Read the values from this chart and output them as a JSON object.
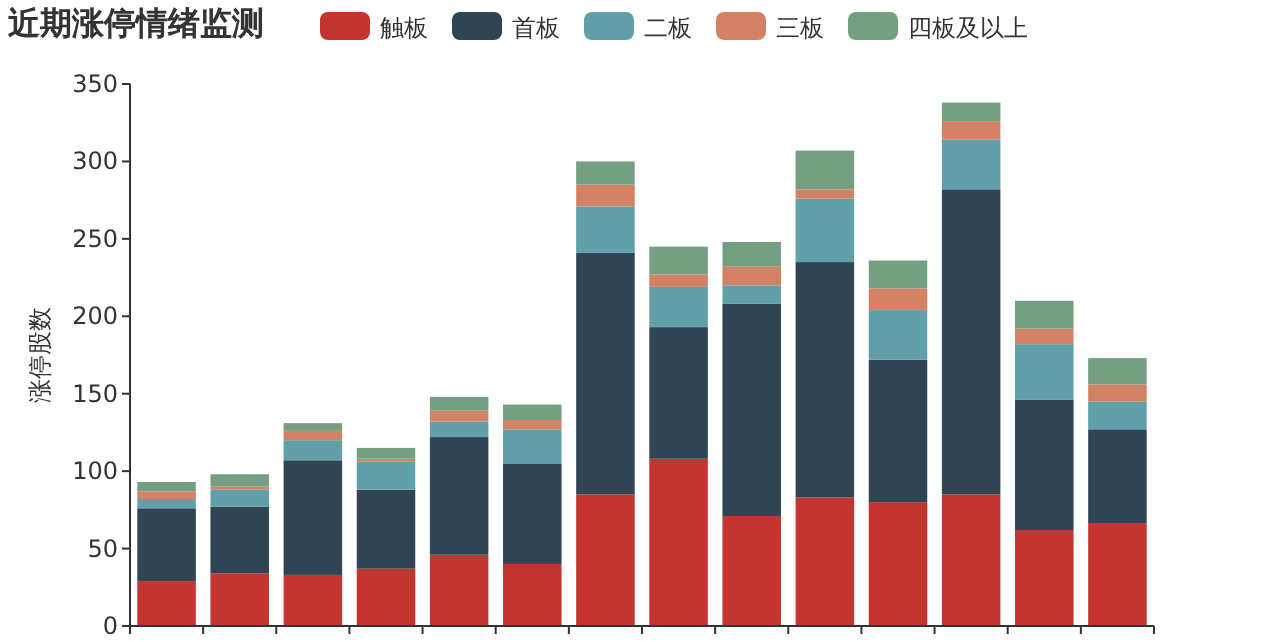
{
  "chart_data": {
    "type": "bar",
    "title": "近期涨停情绪监测",
    "ylabel": "涨停股数",
    "stacked": true,
    "legend": "top",
    "grid": false,
    "categories": [
      null,
      null,
      null,
      null,
      null,
      null,
      null,
      null,
      null,
      null,
      null,
      null,
      null,
      null
    ],
    "ylim": [
      0,
      350
    ],
    "yticks": [
      0,
      50,
      100,
      150,
      200,
      250,
      300,
      350
    ],
    "series": [
      {
        "name": "触板",
        "color": "#c23531",
        "values": [
          29,
          34,
          33,
          37,
          46,
          40,
          85,
          108,
          71,
          83,
          80,
          85,
          62,
          66
        ]
      },
      {
        "name": "首板",
        "color": "#2f4554",
        "values": [
          47,
          43,
          74,
          51,
          76,
          65,
          156,
          85,
          137,
          152,
          92,
          197,
          84,
          61
        ]
      },
      {
        "name": "二板",
        "color": "#61a0a8",
        "values": [
          6,
          11,
          13,
          18,
          10,
          22,
          30,
          26,
          12,
          41,
          32,
          32,
          36,
          18
        ]
      },
      {
        "name": "三板",
        "color": "#d48265",
        "values": [
          5,
          2,
          6,
          2,
          7,
          6,
          14,
          8,
          12,
          6,
          14,
          12,
          10,
          11
        ]
      },
      {
        "name": "四板及以上",
        "color": "#749f83",
        "values": [
          6,
          8,
          5,
          7,
          9,
          10,
          15,
          18,
          16,
          25,
          18,
          12,
          18,
          17
        ]
      }
    ]
  }
}
